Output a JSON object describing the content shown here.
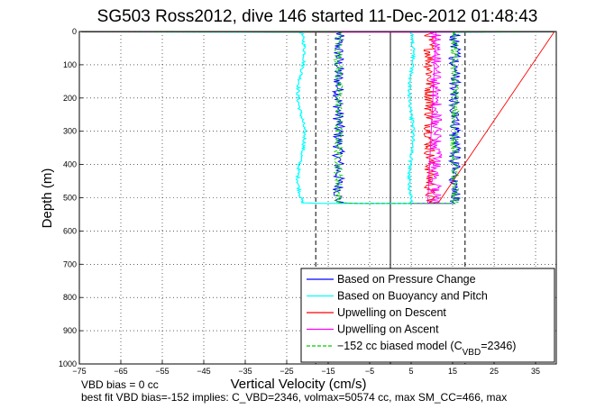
{
  "chart_data": {
    "type": "line",
    "title": "SG503 Ross2012, dive 146 started 11-Dec-2012 01:48:43",
    "xlabel": "Vertical Velocity (cm/s)",
    "ylabel": "Depth (m)",
    "xlim": [
      -75,
      40
    ],
    "ylim": [
      0,
      1000
    ],
    "y_reversed": true,
    "xticks": [
      -75,
      -65,
      -55,
      -45,
      -35,
      -25,
      -15,
      -5,
      5,
      15,
      25,
      35
    ],
    "yticks": [
      0,
      100,
      200,
      300,
      400,
      500,
      600,
      700,
      800,
      900,
      1000
    ],
    "grid": true,
    "legend_position": "bottom-right",
    "dive_depth": 515,
    "vertical_lines": [
      {
        "x": -18,
        "style": "dashed"
      },
      {
        "x": 0,
        "style": "solid"
      },
      {
        "x": 18,
        "style": "dashed"
      }
    ],
    "series": [
      {
        "name": "Based on Pressure Change",
        "color": "#0000ff",
        "descent_w": -12.5,
        "ascent_w": 15.5,
        "noise": 1.4
      },
      {
        "name": "Based on Buoyancy and Pitch",
        "color": "#00ffff",
        "descent_w": -21.5,
        "ascent_w": 5.0,
        "noise": 0.4
      },
      {
        "name": "Upwelling on Descent",
        "color": "#ff0000",
        "descent_w": 9.5,
        "ascent_w": null,
        "noise": 1.4
      },
      {
        "name": "Upwelling on Ascent",
        "color": "#ff00ff",
        "descent_w": null,
        "ascent_w": 11.0,
        "noise": 1.4
      },
      {
        "name": "−152 cc biased model (C_VBD=2346)",
        "legend_main": "−152 cc biased model (C",
        "legend_sub": "VBD",
        "legend_tail": "=2346)",
        "color": "#00cc00",
        "dashed": true,
        "descent_w": -12.5,
        "ascent_w": 15.5,
        "noise": 1.0
      }
    ]
  },
  "footer": {
    "line1": "VBD bias = 0 cc",
    "line2": "best fit VBD bias=-152 implies: C_VBD=2346, volmax=50574 cc, max SM_CC=466, max"
  }
}
